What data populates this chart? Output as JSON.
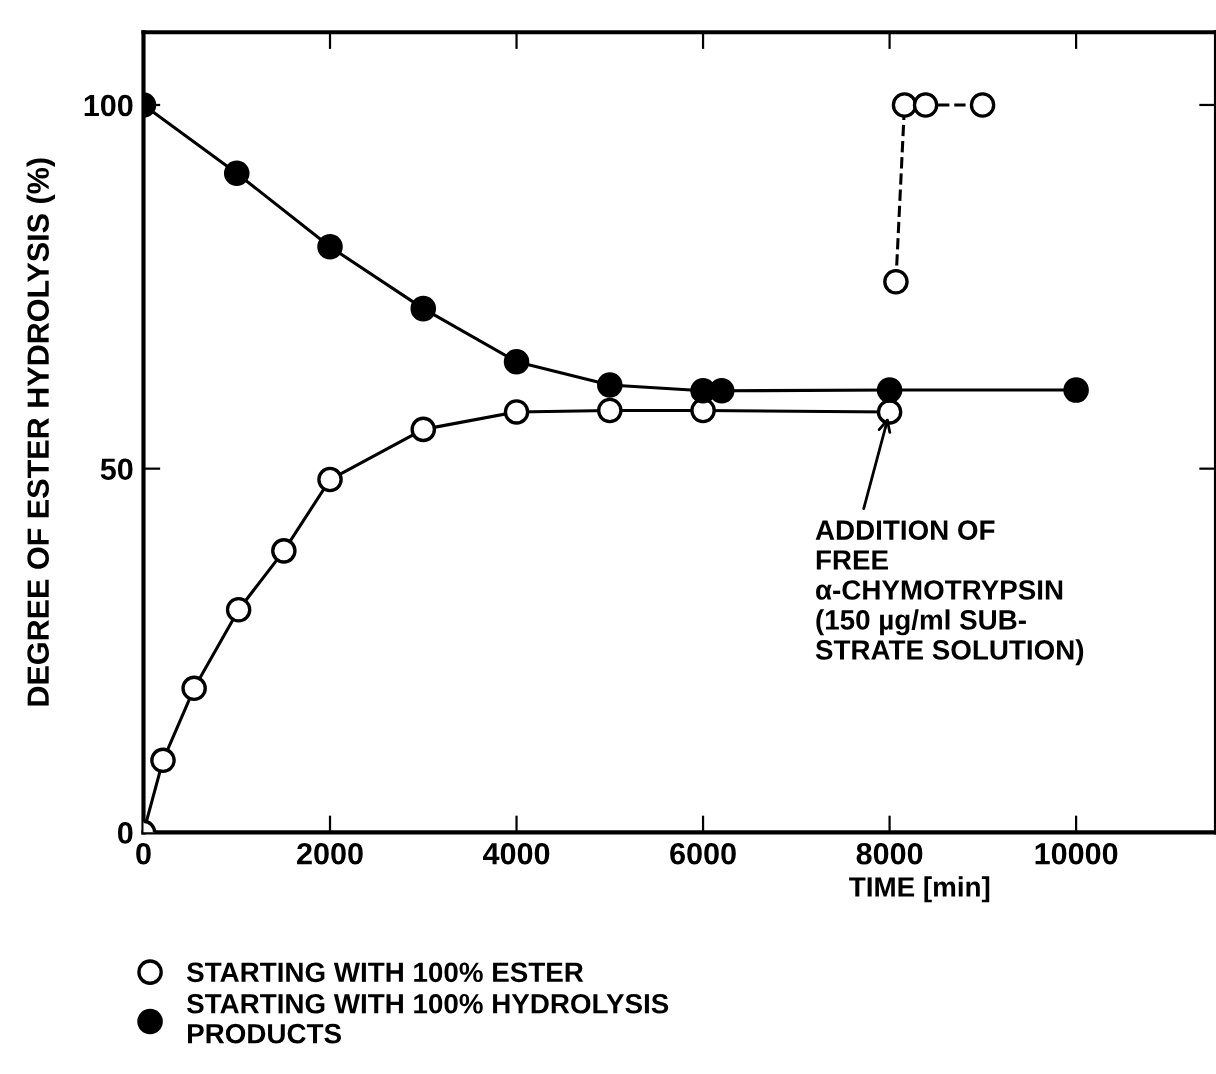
{
  "chart_data": {
    "type": "line",
    "xlabel": "TIME [min]",
    "ylabel": "DEGREE OF ESTER HYDROLYSIS (%)",
    "xlim": [
      0,
      11500
    ],
    "ylim": [
      0,
      110
    ],
    "xticks": [
      0,
      2000,
      4000,
      6000,
      8000,
      10000
    ],
    "yticks": [
      0,
      50,
      100
    ],
    "grid": false,
    "legend": "bottom",
    "marker": "circle",
    "series": [
      {
        "name": "STARTING WITH 100% ESTER",
        "color": "#ffffff",
        "x": [
          0,
          209,
          543,
          1020,
          1505,
          2000,
          3000,
          4000,
          5000,
          6000,
          8000
        ],
        "values": [
          0,
          9.9,
          19.8,
          30.6,
          38.7,
          48.5,
          55.4,
          57.8,
          58,
          58,
          57.8
        ]
      },
      {
        "color": "#ffffff",
        "line_style": "dashed",
        "x": [
          8068,
          8160,
          8386,
          8997
        ],
        "values": [
          75.7,
          100,
          100,
          100
        ]
      },
      {
        "name": "STARTING WITH 100% HYDROLYSIS\nPRODUCTS",
        "color": "#000000",
        "x": [
          0,
          1000,
          2000,
          3000,
          4000,
          5000,
          6000,
          6200,
          8000,
          10000
        ],
        "values": [
          100,
          90.6,
          80.5,
          72,
          64.7,
          61.5,
          60.7,
          60.7,
          60.8,
          60.8
        ]
      }
    ],
    "annotations": [
      {
        "text": "ADDITION OF\nFREE\nα-CHYMOTRYPSIN\n(150 µg/ml SUB-\nSTRATE SOLUTION)",
        "x": 8000,
        "y": 57.8
      }
    ]
  }
}
